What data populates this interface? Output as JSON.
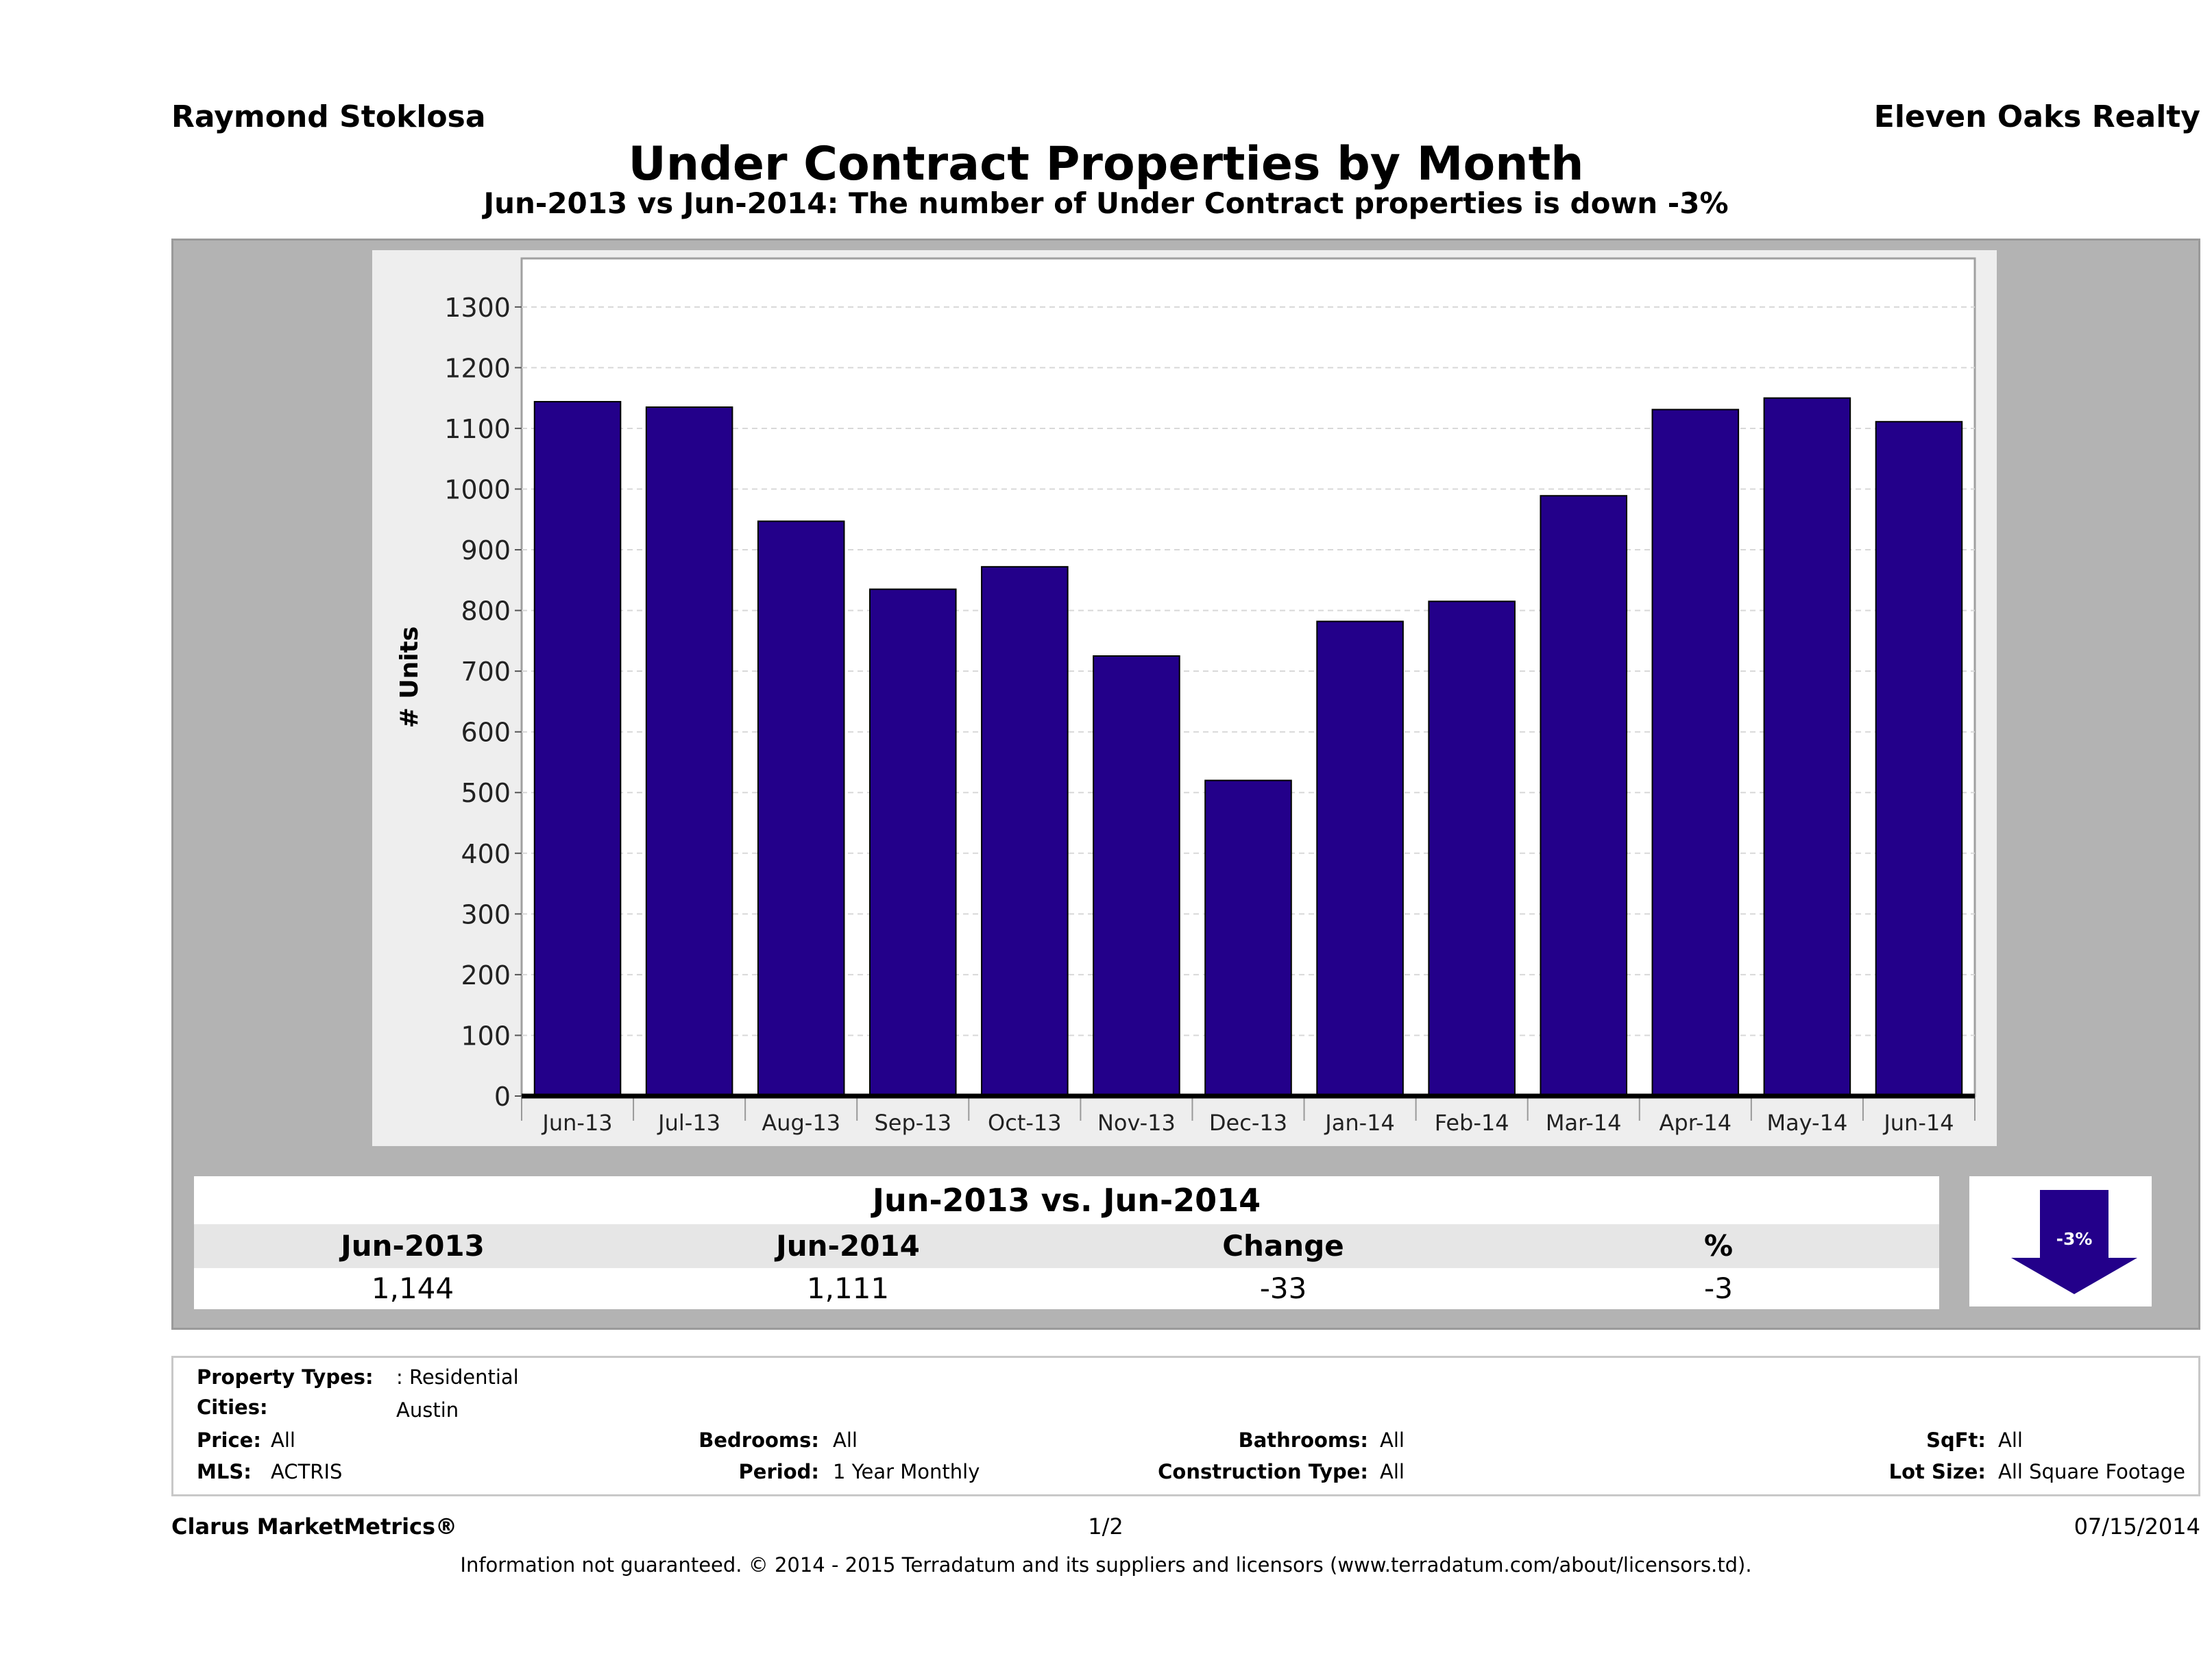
{
  "header": {
    "agent": "Raymond Stoklosa",
    "company": "Eleven Oaks Realty",
    "title": "Under Contract Properties by Month",
    "subtitle": "Jun-2013 vs Jun-2014: The number of Under Contract  properties is down -3%"
  },
  "chart_data": {
    "type": "bar",
    "categories": [
      "Jun-13",
      "Jul-13",
      "Aug-13",
      "Sep-13",
      "Oct-13",
      "Nov-13",
      "Dec-13",
      "Jan-14",
      "Feb-14",
      "Mar-14",
      "Apr-14",
      "May-14",
      "Jun-14"
    ],
    "values": [
      1144,
      1135,
      947,
      835,
      872,
      725,
      520,
      782,
      815,
      989,
      1131,
      1150,
      1111
    ],
    "title": "Under Contract Properties by Month",
    "xlabel": "",
    "ylabel": "# Units",
    "ylim": [
      0,
      1380
    ],
    "yticks": [
      0,
      100,
      200,
      300,
      400,
      500,
      600,
      700,
      800,
      900,
      1000,
      1100,
      1200,
      1300
    ],
    "bar_color": "#23008a",
    "grid": true
  },
  "comparison": {
    "heading": "Jun-2013 vs. Jun-2014",
    "columns": [
      "Jun-2013",
      "Jun-2014",
      "Change",
      "%"
    ],
    "values": [
      "1,144",
      "1,111",
      "-33",
      "-3"
    ],
    "badge": "-3%",
    "arrow_color": "#23008a"
  },
  "filters": {
    "property_types_label": "Property Types:",
    "property_types_value": ": Residential",
    "cities_label": "Cities:",
    "cities_value": "Austin",
    "price_label": "Price:",
    "price_value": "All",
    "bedrooms_label": "Bedrooms:",
    "bedrooms_value": "All",
    "bathrooms_label": "Bathrooms:",
    "bathrooms_value": "All",
    "sqft_label": "SqFt:",
    "sqft_value": "All",
    "mls_label": "MLS:",
    "mls_value": "ACTRIS",
    "period_label": "Period:",
    "period_value": "1 Year Monthly",
    "construction_label": "Construction Type:",
    "construction_value": "All",
    "lotsize_label": "Lot Size:",
    "lotsize_value": "All Square Footage"
  },
  "footer": {
    "brand": "Clarus MarketMetrics®",
    "page": "1/2",
    "date": "07/15/2014",
    "disclaimer": "Information not guaranteed. © 2014 - 2015 Terradatum and its suppliers and licensors (www.terradatum.com/about/licensors.td)."
  }
}
